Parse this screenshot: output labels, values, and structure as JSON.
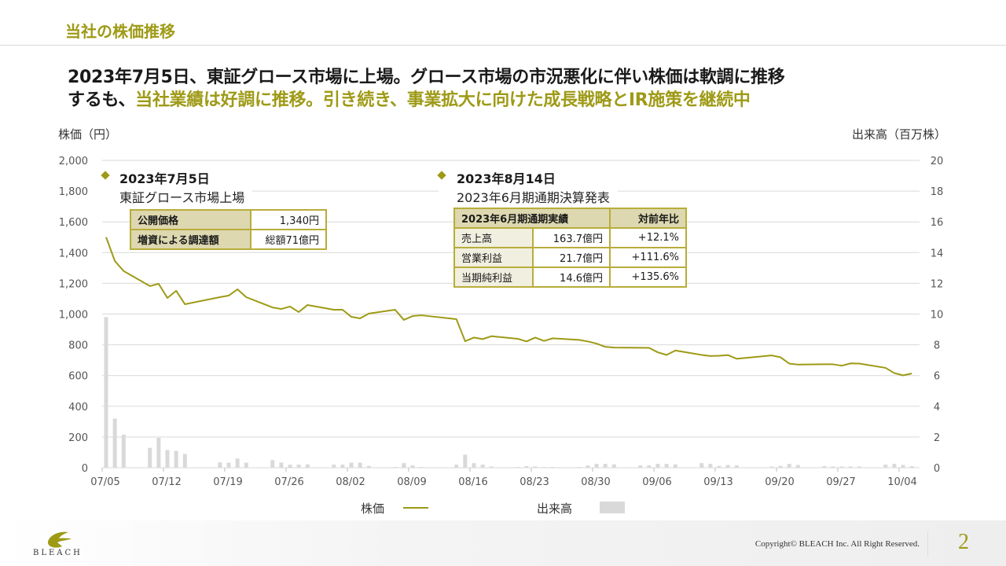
{
  "header": {
    "section_title": "当社の株価推移"
  },
  "headline": {
    "line1": "2023年7月5日、東証グロース市場に上場。グロース市場の市況悪化に伴い株価は軟調に推移",
    "line2_black": "するも、",
    "line2_gold": "当社業績は好調に推移。引き続き、事業拡大に向けた成長戦略とIR施策を継続中"
  },
  "annotations": [
    {
      "date": "2023年7月5日",
      "text": "東証グロース市場上場",
      "table": [
        [
          "公開価格",
          "1,340円"
        ],
        [
          "増資による調達額",
          "総額71億円"
        ]
      ]
    },
    {
      "date": "2023年8月14日",
      "text": "2023年6月期通期決算発表",
      "table_header": [
        "2023年6月期通期実績",
        "対前年比"
      ],
      "table": [
        [
          "売上高",
          "163.7億円",
          "+12.1%"
        ],
        [
          "営業利益",
          "21.7億円",
          "+111.6%"
        ],
        [
          "当期純利益",
          "14.6億円",
          "+135.6%"
        ]
      ]
    }
  ],
  "colors": {
    "price_line": "#9e9a16",
    "volume_bar": "#d9d9d9",
    "accent": "#9e9a16",
    "table_header": "#ddd8b0"
  },
  "chart_data": {
    "type": "line+bar",
    "ylabel": "株価（円）",
    "y2label": "出来高（百万株）",
    "ylim": [
      0,
      2000
    ],
    "y2lim": [
      0,
      20
    ],
    "yticks": [
      "0",
      "200",
      "400",
      "600",
      "800",
      "1,000",
      "1,200",
      "1,400",
      "1,600",
      "1,800",
      "2,000"
    ],
    "y2ticks": [
      "0",
      "2",
      "4",
      "6",
      "8",
      "10",
      "12",
      "14",
      "16",
      "18",
      "20"
    ],
    "xticks": [
      "07/05",
      "07/12",
      "07/19",
      "07/26",
      "08/02",
      "08/09",
      "08/16",
      "08/23",
      "08/30",
      "09/06",
      "09/13",
      "09/20",
      "09/27",
      "10/04"
    ],
    "year": 2023,
    "grid": true,
    "legend_position": "bottom",
    "series": [
      {
        "name": "株価",
        "type": "line",
        "points": [
          [
            "07/05",
            1500
          ],
          [
            "07/06",
            1345
          ],
          [
            "07/07",
            1280
          ],
          [
            "07/10",
            1182
          ],
          [
            "07/11",
            1197
          ],
          [
            "07/12",
            1105
          ],
          [
            "07/13",
            1151
          ],
          [
            "07/14",
            1064
          ],
          [
            "07/18",
            1110
          ],
          [
            "07/19",
            1120
          ],
          [
            "07/20",
            1161
          ],
          [
            "07/21",
            1110
          ],
          [
            "07/24",
            1043
          ],
          [
            "07/25",
            1033
          ],
          [
            "07/26",
            1049
          ],
          [
            "07/27",
            1013
          ],
          [
            "07/28",
            1059
          ],
          [
            "07/31",
            1028
          ],
          [
            "08/01",
            1028
          ],
          [
            "08/02",
            982
          ],
          [
            "08/03",
            972
          ],
          [
            "08/04",
            1003
          ],
          [
            "08/07",
            1028
          ],
          [
            "08/08",
            962
          ],
          [
            "08/09",
            987
          ],
          [
            "08/10",
            992
          ],
          [
            "08/14",
            967
          ],
          [
            "08/15",
            823
          ],
          [
            "08/16",
            847
          ],
          [
            "08/17",
            837
          ],
          [
            "08/18",
            856
          ],
          [
            "08/21",
            839
          ],
          [
            "08/22",
            822
          ],
          [
            "08/23",
            847
          ],
          [
            "08/24",
            825
          ],
          [
            "08/25",
            842
          ],
          [
            "08/28",
            832
          ],
          [
            "08/29",
            822
          ],
          [
            "08/30",
            808
          ],
          [
            "08/31",
            787
          ],
          [
            "09/01",
            782
          ],
          [
            "09/04",
            781
          ],
          [
            "09/05",
            780
          ],
          [
            "09/06",
            751
          ],
          [
            "09/07",
            734
          ],
          [
            "09/08",
            763
          ],
          [
            "09/11",
            734
          ],
          [
            "09/12",
            727
          ],
          [
            "09/13",
            729
          ],
          [
            "09/14",
            733
          ],
          [
            "09/15",
            709
          ],
          [
            "09/19",
            731
          ],
          [
            "09/20",
            719
          ],
          [
            "09/21",
            678
          ],
          [
            "09/22",
            671
          ],
          [
            "09/25",
            673
          ],
          [
            "09/26",
            673
          ],
          [
            "09/27",
            664
          ],
          [
            "09/28",
            679
          ],
          [
            "09/29",
            678
          ],
          [
            "10/02",
            650
          ],
          [
            "10/03",
            616
          ],
          [
            "10/04",
            601
          ],
          [
            "10/05",
            613
          ]
        ]
      },
      {
        "name": "出来高",
        "type": "bar",
        "axis": "right",
        "points": [
          [
            "07/05",
            9.8
          ],
          [
            "07/06",
            3.2
          ],
          [
            "07/07",
            2.15
          ],
          [
            "07/10",
            1.3
          ],
          [
            "07/11",
            1.95
          ],
          [
            "07/12",
            1.15
          ],
          [
            "07/13",
            1.1
          ],
          [
            "07/14",
            0.9
          ],
          [
            "07/18",
            0.35
          ],
          [
            "07/19",
            0.33
          ],
          [
            "07/20",
            0.6
          ],
          [
            "07/21",
            0.33
          ],
          [
            "07/24",
            0.5
          ],
          [
            "07/25",
            0.33
          ],
          [
            "07/26",
            0.2
          ],
          [
            "07/27",
            0.2
          ],
          [
            "07/28",
            0.22
          ],
          [
            "07/31",
            0.2
          ],
          [
            "08/01",
            0.2
          ],
          [
            "08/02",
            0.33
          ],
          [
            "08/03",
            0.33
          ],
          [
            "08/04",
            0.12
          ],
          [
            "08/07",
            0.05
          ],
          [
            "08/08",
            0.3
          ],
          [
            "08/09",
            0.15
          ],
          [
            "08/10",
            0.05
          ],
          [
            "08/14",
            0.2
          ],
          [
            "08/15",
            0.85
          ],
          [
            "08/16",
            0.3
          ],
          [
            "08/17",
            0.2
          ],
          [
            "08/18",
            0.08
          ],
          [
            "08/21",
            0.05
          ],
          [
            "08/22",
            0.1
          ],
          [
            "08/23",
            0.08
          ],
          [
            "08/24",
            0.05
          ],
          [
            "08/25",
            0.05
          ],
          [
            "08/28",
            0.05
          ],
          [
            "08/29",
            0.15
          ],
          [
            "08/30",
            0.25
          ],
          [
            "08/31",
            0.25
          ],
          [
            "09/01",
            0.22
          ],
          [
            "09/04",
            0.15
          ],
          [
            "09/05",
            0.15
          ],
          [
            "09/06",
            0.25
          ],
          [
            "09/07",
            0.25
          ],
          [
            "09/08",
            0.22
          ],
          [
            "09/11",
            0.3
          ],
          [
            "09/12",
            0.25
          ],
          [
            "09/13",
            0.12
          ],
          [
            "09/14",
            0.18
          ],
          [
            "09/15",
            0.15
          ],
          [
            "09/19",
            0.08
          ],
          [
            "09/20",
            0.12
          ],
          [
            "09/21",
            0.25
          ],
          [
            "09/22",
            0.18
          ],
          [
            "09/25",
            0.1
          ],
          [
            "09/26",
            0.08
          ],
          [
            "09/27",
            0.08
          ],
          [
            "09/28",
            0.08
          ],
          [
            "09/29",
            0.08
          ],
          [
            "10/02",
            0.2
          ],
          [
            "10/03",
            0.25
          ],
          [
            "10/04",
            0.18
          ],
          [
            "10/05",
            0.1
          ]
        ]
      }
    ]
  },
  "legend": {
    "price": "株価",
    "volume": "出来高"
  },
  "footer": {
    "logo_text": "BLEACH",
    "copyright": "Copyright© BLEACH Inc. All Right Reserved.",
    "page_number": "2"
  }
}
